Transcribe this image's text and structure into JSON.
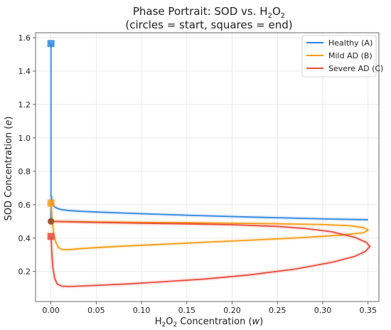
{
  "chart_data": {
    "type": "line",
    "title_main": "Phase Portrait: SOD vs. H",
    "title_sub1": "2",
    "title_mid": "O",
    "title_sub2": "2",
    "title_line2": "(circles = start, squares = end)",
    "xlabel_main": "H",
    "xlabel_sub1": "2",
    "xlabel_mid": "O",
    "xlabel_sub2": "2",
    "xlabel_rest": " Concentration (",
    "xlabel_var": "w",
    "xlabel_end": ")",
    "ylabel_main": "SOD Concentration (",
    "ylabel_var": "e",
    "ylabel_end": ")",
    "xlim": [
      -0.017,
      0.362
    ],
    "ylim": [
      0.02,
      1.63
    ],
    "x_ticks": [
      0.0,
      0.05,
      0.1,
      0.15,
      0.2,
      0.25,
      0.3,
      0.35
    ],
    "x_tick_labels": [
      "0.00",
      "0.05",
      "0.10",
      "0.15",
      "0.20",
      "0.25",
      "0.30",
      "0.35"
    ],
    "y_ticks": [
      0.2,
      0.4,
      0.6,
      0.8,
      1.0,
      1.2,
      1.4,
      1.6
    ],
    "y_tick_labels": [
      "0.2",
      "0.4",
      "0.6",
      "0.8",
      "1.0",
      "1.2",
      "1.4",
      "1.6"
    ],
    "grid": true,
    "legend_position": "top-right",
    "series": [
      {
        "name": "Healthy (A)",
        "color": "#2e86de",
        "x": [
          0.0,
          0.0,
          0.0,
          0.0005,
          0.001,
          0.002,
          0.004,
          0.007,
          0.012,
          0.02,
          0.035,
          0.06,
          0.1,
          0.15,
          0.2,
          0.25,
          0.3,
          0.35
        ],
        "y": [
          0.5,
          0.52,
          0.55,
          0.65,
          0.62,
          0.6,
          0.588,
          0.578,
          0.57,
          0.565,
          0.56,
          0.554,
          0.546,
          0.537,
          0.529,
          0.522,
          0.515,
          0.51
        ],
        "start": [
          0.0,
          0.5
        ],
        "end": [
          0.0,
          1.565
        ],
        "tail_top": 1.565
      },
      {
        "name": "Mild AD (B)",
        "color": "#f39c12",
        "x": [
          0.0,
          0.05,
          0.1,
          0.15,
          0.2,
          0.25,
          0.3,
          0.33,
          0.345,
          0.35,
          0.345,
          0.32,
          0.28,
          0.23,
          0.17,
          0.12,
          0.08,
          0.05,
          0.03,
          0.02,
          0.012,
          0.008,
          0.005,
          0.003,
          0.002,
          0.001,
          0.0005,
          0.0
        ],
        "y": [
          0.5,
          0.497,
          0.494,
          0.492,
          0.489,
          0.486,
          0.481,
          0.474,
          0.463,
          0.448,
          0.432,
          0.418,
          0.404,
          0.39,
          0.375,
          0.362,
          0.352,
          0.343,
          0.336,
          0.331,
          0.332,
          0.345,
          0.38,
          0.43,
          0.48,
          0.53,
          0.575,
          0.61
        ],
        "start": [
          0.0,
          0.5
        ],
        "end": [
          0.0,
          0.61
        ]
      },
      {
        "name": "Severe AD (C)",
        "color": "#e74c3c",
        "x": [
          0.0,
          0.05,
          0.1,
          0.15,
          0.2,
          0.25,
          0.28,
          0.31,
          0.335,
          0.348,
          0.352,
          0.347,
          0.335,
          0.31,
          0.27,
          0.22,
          0.17,
          0.12,
          0.08,
          0.05,
          0.03,
          0.02,
          0.012,
          0.007,
          0.004,
          0.002,
          0.001,
          0.0005,
          0.0
        ],
        "y": [
          0.5,
          0.494,
          0.489,
          0.485,
          0.48,
          0.47,
          0.458,
          0.438,
          0.405,
          0.375,
          0.35,
          0.32,
          0.29,
          0.255,
          0.215,
          0.18,
          0.155,
          0.137,
          0.124,
          0.117,
          0.112,
          0.11,
          0.112,
          0.125,
          0.16,
          0.23,
          0.31,
          0.37,
          0.41
        ],
        "start": [
          0.0,
          0.5
        ],
        "end": [
          0.0,
          0.41
        ]
      }
    ]
  }
}
